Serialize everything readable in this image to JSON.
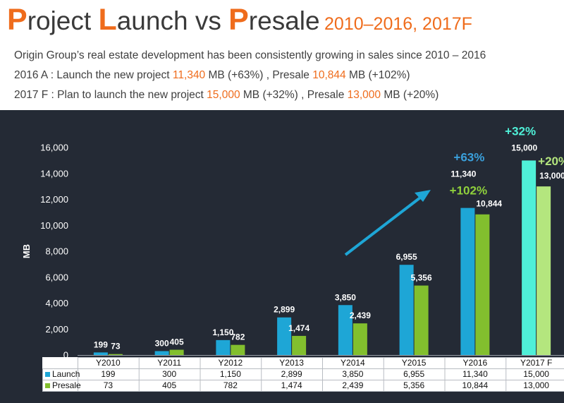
{
  "header": {
    "title_parts": [
      {
        "cap": "P",
        "rest": "roject "
      },
      {
        "cap": "L",
        "rest": "aunch vs "
      },
      {
        "cap": "P",
        "rest": "resale"
      }
    ],
    "subtitle": "2010–2016, 2017F"
  },
  "lines": {
    "intro": "Origin Group’s real estate development has been consistently growing in sales since 2010 – 2016",
    "a2016": {
      "prefix": "2016 A : Launch the new project ",
      "launch_value": "11,340",
      "mid": " MB (+63%) , Presale ",
      "presale_value": "10,844",
      "suffix": " MB (+102%)"
    },
    "f2017": {
      "prefix": "2017 F : Plan to launch the new project ",
      "launch_value": "15,000",
      "mid": " MB (+32%) , Presale ",
      "presale_value": "13,000",
      "suffix": " MB (+20%)"
    }
  },
  "colors": {
    "accent": "#ef6c1c",
    "panel": "#242a35",
    "launch": "#1ea6d6",
    "presale": "#82bf2e",
    "launch_forecast": "#4ff0d8",
    "presale_forecast": "#b4e67e",
    "arrow": "#1ea6d6",
    "growth_launch_2016": "#3aa0dc",
    "growth_presale_2016": "#8fd03c",
    "growth_launch_2017": "#4ff0d8",
    "growth_presale_2017": "#b4e67e"
  },
  "chart_data": {
    "type": "bar",
    "ylabel": "MB",
    "ylim": [
      0,
      16000
    ],
    "yticks": [
      0,
      2000,
      4000,
      6000,
      8000,
      10000,
      12000,
      14000,
      16000
    ],
    "ytick_labels": [
      "0",
      "2,000",
      "4,000",
      "6,000",
      "8,000",
      "10,000",
      "12,000",
      "14,000",
      "16,000"
    ],
    "categories": [
      "Y2010",
      "Y2011",
      "Y2012",
      "Y2013",
      "Y2014",
      "Y2015",
      "Y2016",
      "Y2017 F"
    ],
    "series": [
      {
        "name": "Launch",
        "values": [
          199,
          300,
          1150,
          2899,
          3850,
          6955,
          11340,
          15000
        ],
        "labels": [
          "199",
          "300",
          "1,150",
          "2,899",
          "3,850",
          "6,955",
          "11,340",
          "15,000"
        ]
      },
      {
        "name": "Presale",
        "values": [
          73,
          405,
          782,
          1474,
          2439,
          5356,
          10844,
          13000
        ],
        "labels": [
          "73",
          "405",
          "782",
          "1,474",
          "2,439",
          "5,356",
          "10,844",
          "13,000"
        ]
      }
    ],
    "annotations": [
      {
        "text": "+63%",
        "category": "Y2016",
        "series": "Launch"
      },
      {
        "text": "+102%",
        "category": "Y2016",
        "series": "Presale"
      },
      {
        "text": "+32%",
        "category": "Y2017 F",
        "series": "Launch"
      },
      {
        "text": "+20%",
        "category": "Y2017 F",
        "series": "Presale"
      }
    ],
    "legend": "table-bottom"
  }
}
